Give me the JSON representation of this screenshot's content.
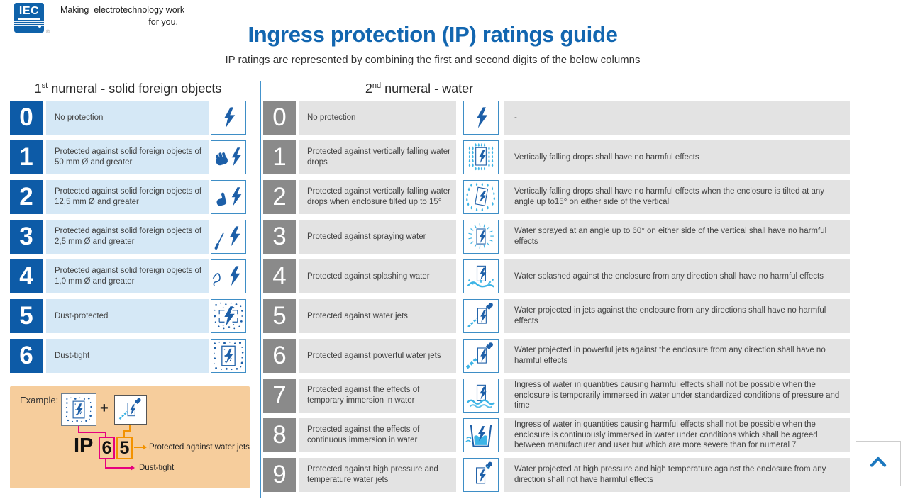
{
  "header": {
    "logo_text": "IEC",
    "logo_registered": "®",
    "tagline_line1": "Making  electrotechnology work",
    "tagline_line2": "for you.",
    "title": "Ingress protection (IP) ratings guide",
    "subtitle": "IP ratings are represented by combining the first and second digits of the below columns"
  },
  "columns": {
    "solid": {
      "heading_prefix": "1",
      "heading_sup": "st",
      "heading_rest": " numeral - solid foreign objects",
      "rows": [
        {
          "digit": "0",
          "label": "No protection",
          "icon": "bolt-icon"
        },
        {
          "digit": "1",
          "label": "Protected against solid foreign objects of 50 mm Ø and greater",
          "icon": "hand-bolt-icon"
        },
        {
          "digit": "2",
          "label": "Protected against solid foreign objects of 12,5 mm Ø and greater",
          "icon": "knuckle-bolt-icon"
        },
        {
          "digit": "3",
          "label": "Protected against solid foreign objects of 2,5 mm Ø and greater",
          "icon": "tool-bolt-icon"
        },
        {
          "digit": "4",
          "label": "Protected against solid foreign objects of 1,0 mm Ø and greater",
          "icon": "wire-bolt-icon"
        },
        {
          "digit": "5",
          "label": "Dust-protected",
          "icon": "dust-protected-icon"
        },
        {
          "digit": "6",
          "label": "Dust-tight",
          "icon": "dust-tight-icon"
        }
      ]
    },
    "water": {
      "heading_prefix": "2",
      "heading_sup": "nd",
      "heading_rest": " numeral - water",
      "rows": [
        {
          "digit": "0",
          "label": "No protection",
          "icon": "water-bolt-icon",
          "description": "-"
        },
        {
          "digit": "1",
          "label": "Protected against vertically falling water drops",
          "icon": "dripping-water-icon",
          "description": "Vertically falling drops shall have no harmful effects"
        },
        {
          "digit": "2",
          "label": "Protected against vertically falling water drops when enclosure tilted up to 15°",
          "icon": "tilted-drip-icon",
          "description": "Vertically falling drops shall have no harmful effects when the enclosure is tilted at any angle up to15° on either side of the vertical"
        },
        {
          "digit": "3",
          "label": "Protected against spraying water",
          "icon": "spraying-water-icon",
          "description": "Water sprayed at an angle up to 60° on either side of the vertical shall have no harmful effects"
        },
        {
          "digit": "4",
          "label": "Protected against splashing water",
          "icon": "splashing-water-icon",
          "description": "Water splashed against the enclosure from any direction shall have no harmful effects"
        },
        {
          "digit": "5",
          "label": "Protected against water jets",
          "icon": "water-jet-icon",
          "description": "Water projected in jets against the enclosure from any directions shall have no harmful effects"
        },
        {
          "digit": "6",
          "label": "Protected against powerful water jets",
          "icon": "powerful-jet-icon",
          "description": "Water projected in powerful jets against the enclosure from any direction shall have no harmful effects"
        },
        {
          "digit": "7",
          "label": "Protected against the effects of temporary immersion in water",
          "icon": "temporary-immersion-icon",
          "description": "Ingress of water in quantities causing harmful effects shall not be possible when the enclosure is temporarily immersed in water under standardized conditions of pressure and time"
        },
        {
          "digit": "8",
          "label": "Protected against the effects of continuous immersion in water",
          "icon": "continuous-immersion-icon",
          "description": "Ingress of water in quantities causing harmful effects shall not be possible when the enclosure is continuously immersed in water under conditions which shall be agreed between manufacturer and user but which are more severe than for numeral 7"
        },
        {
          "digit": "9",
          "label": "Protected against high pressure and temperature water jets",
          "icon": "high-pressure-jet-icon",
          "description": "Water projected at high pressure and high temperature against the enclosure from any direction shall not have harmful effects"
        }
      ]
    }
  },
  "example": {
    "label": "Example:",
    "plus": "+",
    "icon1": "dust-tight-icon",
    "icon2": "water-jet-icon",
    "ip_prefix": "IP",
    "first_digit": "6",
    "second_digit": "5",
    "second_digit_meaning": "Protected against water jets",
    "first_digit_meaning": "Dust-tight"
  },
  "scroll_top": {
    "icon": "chevron-up-icon"
  },
  "colors": {
    "iec_blue": "#0f62aa",
    "title_blue": "#1266b0",
    "num_blue": "#0d5ba7",
    "row_blue": "#d5e8f6",
    "num_gray": "#8a8a8a",
    "row_gray": "#e3e3e3",
    "icon_border": "#3e8ec6",
    "bolt": "#1d5fa8",
    "cyan": "#3cb4e6",
    "example_bg": "#f6cd9c",
    "magenta": "#e6007e",
    "orange": "#f39200",
    "chevron_blue": "#1c78bf"
  }
}
